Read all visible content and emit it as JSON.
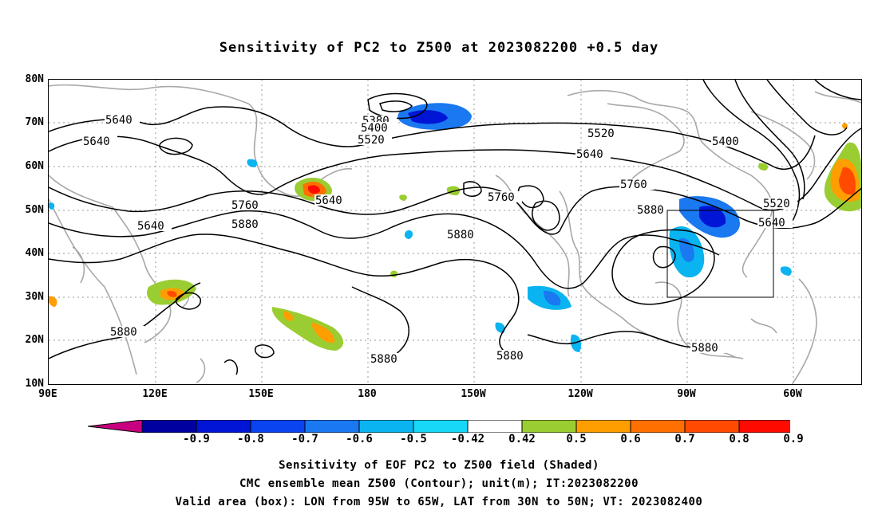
{
  "title": "Sensitivity of PC2 to Z500 at 2023082200 +0.5 day",
  "lat_labels": [
    "80N",
    "70N",
    "60N",
    "50N",
    "40N",
    "30N",
    "20N",
    "10N"
  ],
  "lon_labels": [
    "90E",
    "120E",
    "150E",
    "180",
    "150W",
    "120W",
    "90W",
    "60W"
  ],
  "contour_labels": [
    {
      "text": "5640"
    },
    {
      "text": "5640"
    },
    {
      "text": "5640"
    },
    {
      "text": "5640"
    },
    {
      "text": "5640"
    },
    {
      "text": "5640"
    },
    {
      "text": "5380"
    },
    {
      "text": "5400"
    },
    {
      "text": "5400"
    },
    {
      "text": "5520"
    },
    {
      "text": "5520"
    },
    {
      "text": "5520"
    },
    {
      "text": "5760"
    },
    {
      "text": "5760"
    },
    {
      "text": "5760"
    },
    {
      "text": "5880"
    },
    {
      "text": "5880"
    },
    {
      "text": "5880"
    },
    {
      "text": "5880"
    },
    {
      "text": "5880"
    },
    {
      "text": "5880"
    },
    {
      "text": "5880"
    }
  ],
  "valid_box": {
    "lon_from": "95W",
    "lon_to": "65W",
    "lat_from": "30N",
    "lat_to": "50N"
  },
  "colorbar": {
    "labels": [
      "-0.9",
      "-0.8",
      "-0.7",
      "-0.6",
      "-0.5",
      "-0.42",
      "0.42",
      "0.5",
      "0.6",
      "0.7",
      "0.8",
      "0.9"
    ],
    "colors": [
      "#c8007f",
      "#0000a0",
      "#0015d6",
      "#0a43f0",
      "#1a78f0",
      "#0ab4f0",
      "#18d8f8",
      "#ffffff",
      "#9acd32",
      "#ff9e00",
      "#ff7000",
      "#ff4a00",
      "#ff0a00",
      "#ff99c8"
    ]
  },
  "captions": {
    "line1": "Sensitivity of EOF PC2 to Z500 field (Shaded)",
    "line2": "CMC ensemble mean Z500 (Contour); unit(m); IT:2023082200",
    "line3": "Valid area (box): LON from 95W to 65W, LAT from 30N to 50N; VT: 2023082400"
  }
}
